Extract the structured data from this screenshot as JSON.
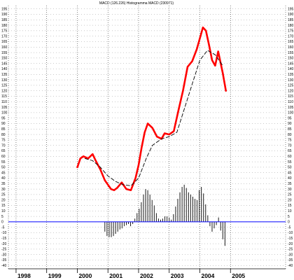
{
  "chart_data": {
    "type": "line",
    "title": "MACD (126.226) Histogramma MACD (230971)",
    "x_ticks": [
      "1998",
      "1999",
      "2000",
      "2001",
      "2002",
      "2003",
      "2004",
      "2005"
    ],
    "y_ticks": [
      195,
      190,
      185,
      180,
      175,
      170,
      165,
      160,
      155,
      150,
      145,
      140,
      135,
      130,
      125,
      120,
      115,
      110,
      105,
      100,
      95,
      90,
      85,
      80,
      75,
      70,
      65,
      60,
      55,
      50,
      45,
      40,
      35,
      30,
      25,
      20,
      15,
      10,
      5,
      0,
      -5,
      -10,
      -15,
      -20,
      -25,
      -30,
      -35,
      -40
    ],
    "xlim": [
      1997.75,
      2006.8
    ],
    "ylim": [
      -43,
      198
    ],
    "grid": true,
    "colors": {
      "macd": "#ff0000",
      "signal": "#000000",
      "zero_line": "#0000ff",
      "histogram": "#000000",
      "grid": "#000000"
    },
    "series": [
      {
        "style": "solid-red",
        "x": [
          2000.0,
          2000.1,
          2000.2,
          2000.35,
          2000.5,
          2000.6,
          2000.75,
          2000.9,
          2001.0,
          2001.1,
          2001.2,
          2001.3,
          2001.45,
          2001.6,
          2001.75,
          2001.9,
          2002.0,
          2002.1,
          2002.2,
          2002.3,
          2002.45,
          2002.6,
          2002.75,
          2002.85,
          2003.0,
          2003.15,
          2003.3,
          2003.45,
          2003.6,
          2003.75,
          2003.9,
          2004.0,
          2004.1,
          2004.2,
          2004.3,
          2004.4,
          2004.5,
          2004.6,
          2004.75,
          2004.85
        ],
        "values": [
          50,
          58,
          60,
          58,
          62,
          56,
          48,
          38,
          34,
          30,
          29,
          31,
          36,
          30,
          29,
          40,
          52,
          68,
          82,
          90,
          86,
          78,
          76,
          81,
          80,
          83,
          102,
          120,
          142,
          147,
          158,
          168,
          178,
          175,
          162,
          148,
          143,
          156,
          136,
          120
        ]
      },
      {
        "style": "dashed-black",
        "x": [
          2000.25,
          2000.5,
          2000.75,
          2001.0,
          2001.25,
          2001.5,
          2001.75,
          2002.0,
          2002.25,
          2002.45,
          2002.75,
          2003.0,
          2003.25,
          2003.5,
          2003.75,
          2004.0,
          2004.25,
          2004.5,
          2004.75
        ],
        "values": [
          58,
          56,
          50,
          42,
          37,
          34,
          33,
          40,
          58,
          70,
          76,
          78,
          82,
          104,
          126,
          148,
          157,
          153,
          143
        ]
      }
    ],
    "histogram": {
      "x": [
        2000.9,
        2000.97,
        2001.04,
        2001.11,
        2001.18,
        2001.25,
        2001.32,
        2001.39,
        2001.46,
        2001.53,
        2001.6,
        2001.67,
        2001.74,
        2001.81,
        2001.88,
        2001.95,
        2002.02,
        2002.09,
        2002.16,
        2002.23,
        2002.3,
        2002.37,
        2002.44,
        2002.51,
        2002.58,
        2002.65,
        2002.72,
        2002.79,
        2002.86,
        2002.93,
        2003.0,
        2003.07,
        2003.14,
        2003.21,
        2003.28,
        2003.35,
        2003.42,
        2003.49,
        2003.56,
        2003.63,
        2003.7,
        2003.77,
        2003.84,
        2003.91,
        2003.98,
        2004.05,
        2004.12,
        2004.19,
        2004.26,
        2004.33,
        2004.4,
        2004.47,
        2004.54,
        2004.61,
        2004.68,
        2004.75,
        2004.82
      ],
      "values": [
        -9,
        -13,
        -14,
        -14,
        -13,
        -11,
        -9,
        -7,
        -6,
        -4,
        -3,
        -2,
        -4,
        -2,
        3,
        8,
        12,
        18,
        25,
        30,
        29,
        25,
        20,
        15,
        8,
        3,
        2,
        3,
        5,
        5,
        4,
        2,
        7,
        14,
        21,
        27,
        32,
        34,
        31,
        27,
        25,
        23,
        21,
        20,
        29,
        32,
        26,
        16,
        6,
        -4,
        -9,
        -6,
        -3,
        4,
        -8,
        -16,
        -22
      ]
    }
  }
}
